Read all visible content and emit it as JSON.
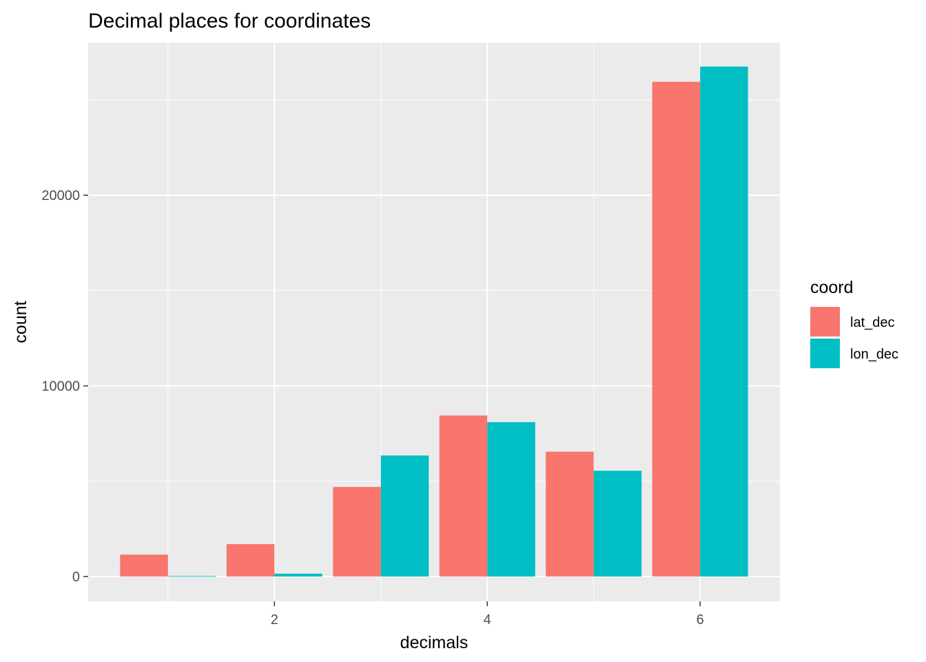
{
  "chart_data": {
    "type": "bar",
    "title": "Decimal places for coordinates",
    "xlabel": "decimals",
    "ylabel": "count",
    "x": [
      1,
      2,
      3,
      4,
      5,
      6
    ],
    "x_ticks": [
      2,
      4,
      6
    ],
    "x_tick_labels": [
      "2",
      "4",
      "6"
    ],
    "xlim": [
      0.25,
      6.75
    ],
    "y_ticks": [
      0,
      10000,
      20000
    ],
    "y_tick_labels": [
      "0",
      "10000",
      "20000"
    ],
    "ylim": [
      -1300,
      28000
    ],
    "grid": true,
    "legend": {
      "title": "coord",
      "position": "right"
    },
    "series": [
      {
        "name": "lat_dec",
        "color": "#F8766D",
        "values": [
          1150,
          1700,
          4700,
          8450,
          6550,
          25950
        ]
      },
      {
        "name": "lon_dec",
        "color": "#00BFC4",
        "values": [
          30,
          150,
          6350,
          8100,
          5550,
          26750
        ]
      }
    ]
  }
}
